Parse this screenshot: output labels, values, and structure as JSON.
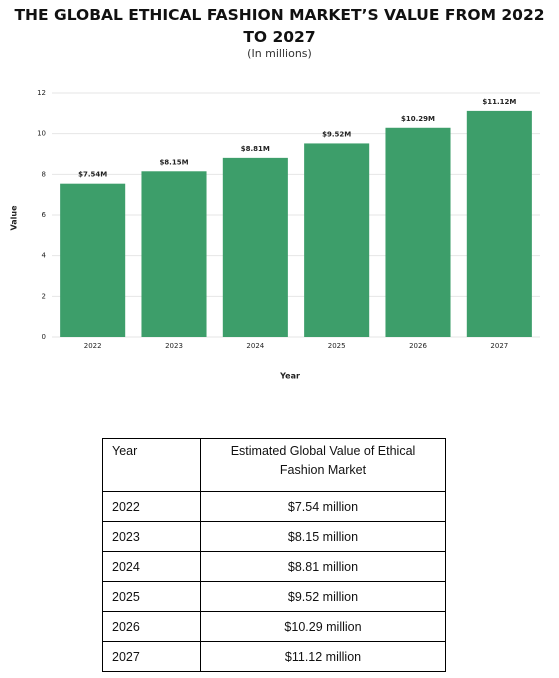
{
  "chart_data": {
    "type": "bar",
    "title": "THE GLOBAL ETHICAL FASHION MARKET’S VALUE FROM 2022 TO 2027",
    "subtitle": "(In millions)",
    "x_label": "Year",
    "y_label": "Value",
    "categories": [
      "2022",
      "2023",
      "2024",
      "2025",
      "2026",
      "2027"
    ],
    "values": [
      7.54,
      8.15,
      8.81,
      9.52,
      10.29,
      11.12
    ],
    "value_labels": [
      "$7.54M",
      "$8.15M",
      "$8.81M",
      "$9.52M",
      "$10.29M",
      "$11.12M"
    ],
    "color": "#3d9e6a",
    "ylim": [
      0,
      12
    ],
    "yticks": [
      0,
      2,
      4,
      6,
      8,
      10,
      12
    ],
    "grid": true
  },
  "table": {
    "header": [
      "Year",
      "Estimated Global Value of Ethical Fashion Market"
    ],
    "rows": [
      [
        "2022",
        "$7.54 million"
      ],
      [
        "2023",
        "$8.15 million"
      ],
      [
        "2024",
        "$8.81 million"
      ],
      [
        "2025",
        "$9.52 million"
      ],
      [
        "2026",
        "$10.29 million"
      ],
      [
        "2027",
        "$11.12 million"
      ]
    ]
  }
}
